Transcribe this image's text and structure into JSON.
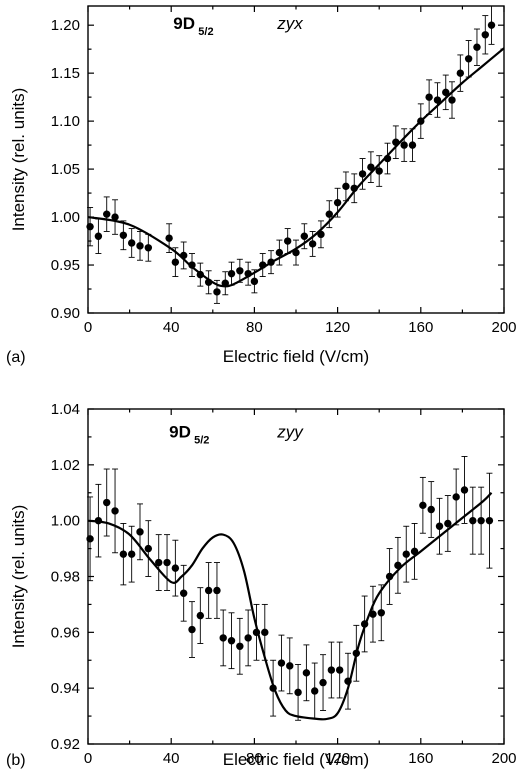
{
  "chart_data": [
    {
      "type": "scatter",
      "panel_label": "(a)",
      "annotation": {
        "state_main": "9D",
        "state_sub": "5/2",
        "polarization": "zyx"
      },
      "xlabel": "Electric field (V/cm)",
      "ylabel": "Intensity (rel. units)",
      "xlim": [
        0,
        200
      ],
      "ylim": [
        0.9,
        1.22
      ],
      "xticks": [
        "0",
        "40",
        "80",
        "120",
        "160",
        "200"
      ],
      "yticks": [
        "0.90",
        "0.95",
        "1.00",
        "1.05",
        "1.10",
        "1.15",
        "1.20"
      ],
      "series": [
        {
          "kind": "points_with_errorbars",
          "x": [
            1,
            5,
            9,
            13,
            17,
            21,
            25,
            29,
            39,
            42,
            46,
            50,
            54,
            58,
            62,
            66,
            69,
            73,
            77,
            80,
            84,
            88,
            92,
            96,
            100,
            104,
            108,
            112,
            116,
            120,
            124,
            128,
            132,
            136,
            140,
            144,
            148,
            152,
            156,
            160,
            164,
            168,
            172,
            175,
            179,
            183,
            187,
            191,
            194
          ],
          "y": [
            0.99,
            0.98,
            1.003,
            1.0,
            0.981,
            0.973,
            0.97,
            0.968,
            0.978,
            0.953,
            0.96,
            0.95,
            0.94,
            0.932,
            0.922,
            0.931,
            0.941,
            0.944,
            0.941,
            0.933,
            0.95,
            0.953,
            0.963,
            0.975,
            0.963,
            0.98,
            0.972,
            0.982,
            1.003,
            1.015,
            1.032,
            1.03,
            1.045,
            1.052,
            1.048,
            1.061,
            1.078,
            1.075,
            1.075,
            1.1,
            1.125,
            1.122,
            1.13,
            1.122,
            1.15,
            1.165,
            1.177,
            1.19,
            1.2
          ],
          "err": [
            0.02,
            0.018,
            0.018,
            0.018,
            0.015,
            0.015,
            0.015,
            0.014,
            0.015,
            0.015,
            0.014,
            0.012,
            0.012,
            0.012,
            0.012,
            0.012,
            0.012,
            0.012,
            0.012,
            0.012,
            0.012,
            0.012,
            0.013,
            0.013,
            0.013,
            0.013,
            0.013,
            0.014,
            0.014,
            0.015,
            0.015,
            0.015,
            0.016,
            0.016,
            0.016,
            0.016,
            0.017,
            0.017,
            0.017,
            0.018,
            0.018,
            0.018,
            0.018,
            0.019,
            0.019,
            0.019,
            0.019,
            0.02,
            0.02
          ]
        },
        {
          "kind": "fit_line",
          "x": [
            0,
            20,
            40,
            50,
            60,
            65,
            70,
            80,
            90,
            100,
            110,
            120,
            130,
            140,
            150,
            160,
            170,
            180,
            190,
            200
          ],
          "y": [
            1.0,
            0.992,
            0.967,
            0.948,
            0.932,
            0.928,
            0.93,
            0.942,
            0.955,
            0.967,
            0.983,
            1.005,
            1.032,
            1.055,
            1.078,
            1.1,
            1.12,
            1.14,
            1.158,
            1.176
          ]
        }
      ]
    },
    {
      "type": "scatter",
      "panel_label": "(b)",
      "annotation": {
        "state_main": "9D",
        "state_sub": "5/2",
        "polarization": "zyy"
      },
      "xlabel": "Electric field (V/cm)",
      "ylabel": "Intensity (rel. units)",
      "xlim": [
        0,
        200
      ],
      "ylim": [
        0.92,
        1.04
      ],
      "xticks": [
        "0",
        "40",
        "80",
        "120",
        "160",
        "200"
      ],
      "yticks": [
        "0.92",
        "0.94",
        "0.96",
        "0.98",
        "1.00",
        "1.02",
        "1.04"
      ],
      "series": [
        {
          "kind": "points_with_errorbars",
          "x": [
            1,
            5,
            9,
            13,
            17,
            21,
            25,
            29,
            34,
            38,
            42,
            46,
            50,
            54,
            58,
            62,
            65,
            69,
            73,
            77,
            81,
            85,
            89,
            93,
            97,
            101,
            105,
            109,
            113,
            117,
            121,
            125,
            129,
            133,
            137,
            141,
            145,
            149,
            153,
            157,
            161,
            165,
            169,
            173,
            177,
            181,
            185,
            189,
            193
          ],
          "y": [
            0.9935,
            1.0,
            1.0065,
            1.0035,
            0.988,
            0.988,
            0.996,
            0.99,
            0.985,
            0.985,
            0.983,
            0.974,
            0.961,
            0.966,
            0.975,
            0.975,
            0.958,
            0.957,
            0.955,
            0.958,
            0.96,
            0.96,
            0.94,
            0.949,
            0.948,
            0.9385,
            0.9455,
            0.939,
            0.942,
            0.9465,
            0.9465,
            0.9425,
            0.9525,
            0.963,
            0.9665,
            0.967,
            0.98,
            0.984,
            0.988,
            0.989,
            1.0055,
            1.004,
            0.998,
            0.999,
            1.0085,
            1.011,
            1.0,
            1.0,
            1.0
          ],
          "err": [
            0.015,
            0.013,
            0.012,
            0.015,
            0.011,
            0.01,
            0.01,
            0.01,
            0.01,
            0.01,
            0.01,
            0.01,
            0.01,
            0.01,
            0.01,
            0.01,
            0.01,
            0.01,
            0.01,
            0.01,
            0.01,
            0.01,
            0.01,
            0.01,
            0.01,
            0.01,
            0.01,
            0.01,
            0.01,
            0.01,
            0.01,
            0.01,
            0.01,
            0.01,
            0.01,
            0.01,
            0.01,
            0.01,
            0.01,
            0.01,
            0.01,
            0.01,
            0.01,
            0.01,
            0.01,
            0.012,
            0.012,
            0.012,
            0.017
          ]
        },
        {
          "kind": "fit_line",
          "x": [
            0,
            10,
            20,
            30,
            40,
            45,
            50,
            55,
            60,
            65,
            70,
            75,
            80,
            85,
            90,
            95,
            100,
            110,
            115,
            120,
            125,
            130,
            135,
            140,
            150,
            160,
            170,
            180,
            190,
            194
          ],
          "y": [
            1.0,
            0.999,
            0.995,
            0.986,
            0.978,
            0.98,
            0.984,
            0.99,
            0.994,
            0.995,
            0.992,
            0.982,
            0.965,
            0.951,
            0.939,
            0.932,
            0.93,
            0.929,
            0.929,
            0.931,
            0.94,
            0.955,
            0.966,
            0.974,
            0.983,
            0.989,
            0.995,
            1.001,
            1.007,
            1.01
          ]
        }
      ]
    }
  ]
}
